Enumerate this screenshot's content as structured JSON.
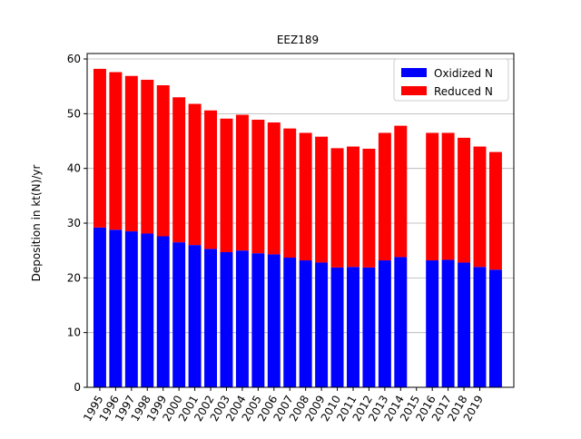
{
  "chart_data": {
    "type": "stacked_bar",
    "title": "EEZ189",
    "ylabel": "Deposition in kt(N)/yr",
    "categories": [
      "1995",
      "1996",
      "1997",
      "1998",
      "1999",
      "2000",
      "2001",
      "2002",
      "2003",
      "2004",
      "2005",
      "2006",
      "2007",
      "2008",
      "2009",
      "2010",
      "2011",
      "2012",
      "2013",
      "2014",
      "2015",
      "2016",
      "2017",
      "2018",
      "2019",
      null
    ],
    "series": [
      {
        "name": "Oxidized N",
        "color": "#0000ff",
        "values": [
          29.2,
          28.8,
          28.5,
          28.1,
          27.6,
          26.5,
          26.0,
          25.3,
          24.7,
          25.0,
          24.5,
          24.3,
          23.7,
          23.2,
          22.8,
          21.9,
          22.0,
          21.9,
          23.2,
          23.8,
          null,
          23.2,
          23.3,
          22.8,
          22.0,
          21.5
        ]
      },
      {
        "name": "Reduced N",
        "color": "#ff0000",
        "values": [
          29.0,
          28.8,
          28.4,
          28.1,
          27.6,
          26.5,
          25.8,
          25.3,
          24.4,
          24.8,
          24.4,
          24.1,
          23.6,
          23.3,
          23.0,
          21.8,
          22.0,
          21.7,
          23.3,
          24.0,
          null,
          23.3,
          23.2,
          22.8,
          22.0,
          21.5
        ]
      }
    ],
    "ylim": [
      0,
      61
    ],
    "yticks": [
      0,
      10,
      20,
      30,
      40,
      50,
      60
    ],
    "grid": true,
    "legend": "upper right"
  }
}
